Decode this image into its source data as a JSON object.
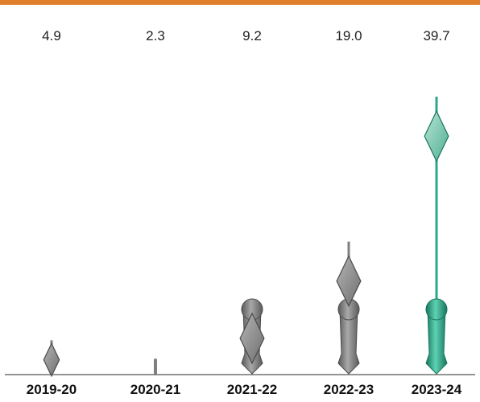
{
  "chart_data": {
    "type": "bar",
    "categories": [
      "2019-20",
      "2020-21",
      "2021-22",
      "2022-23",
      "2023-24"
    ],
    "values": [
      4.9,
      2.3,
      9.2,
      19.0,
      39.7
    ],
    "value_labels": [
      "4.9",
      "2.3",
      "9.2",
      "19.0",
      "39.7"
    ],
    "title": "",
    "xlabel": "",
    "ylabel": "",
    "ylim": [
      0,
      42
    ],
    "grid": false,
    "legend": "none",
    "highlight_category": "2023-24"
  },
  "colors": {
    "top_rule": "#e07f2b",
    "baseline": "#555555",
    "default_mark": "#808080",
    "default_mark_dark": "#4a4a4a",
    "highlight_mark": "#2aa88a",
    "highlight_mark_dark": "#17755d"
  }
}
